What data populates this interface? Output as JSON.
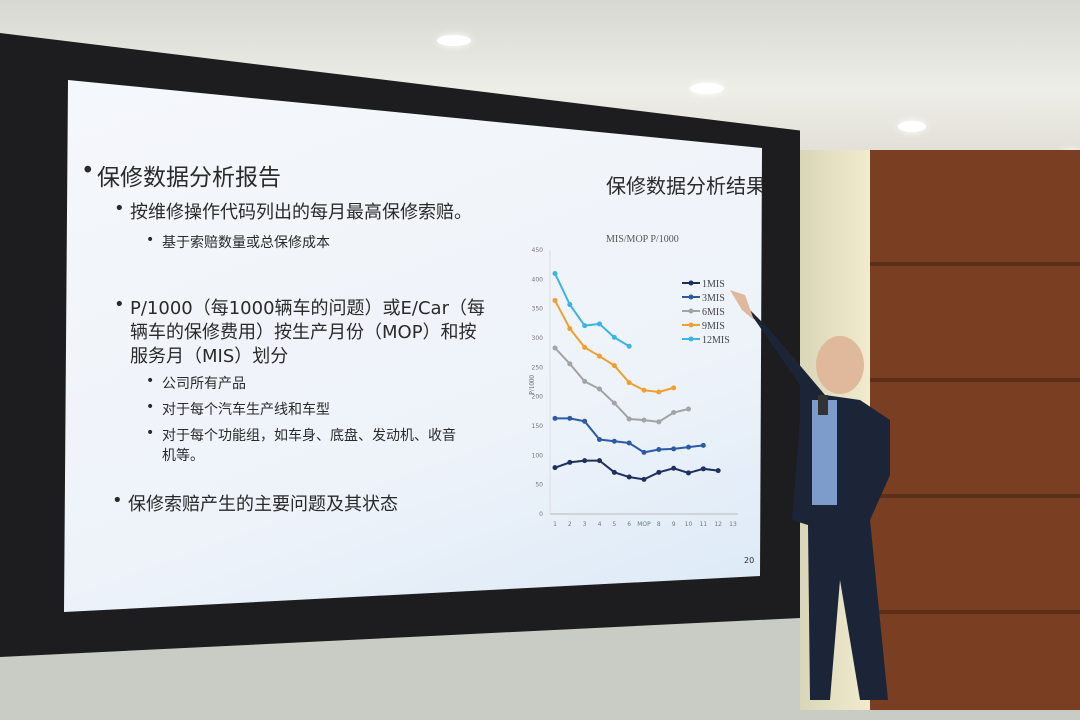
{
  "slide": {
    "left_heading": "保修数据分析报告",
    "bullets": [
      "按维修操作代码列出的每月最高保修索赔。",
      "基于索赔数量或总保修成本",
      "P/1000（每1000辆车的问题）或E/Car（每",
      "辆车的保修费用）按生产月份（MOP）和按",
      "服务月（MIS）划分",
      "公司所有产品",
      "对于每个汽车生产线和车型",
      "对于每个功能组，如车身、底盘、发动机、收音",
      "机等。",
      "保修索赔产生的主要问题及其状态"
    ],
    "right_heading": "保修数据分析结果",
    "page_number": "20"
  },
  "chart_data": {
    "type": "line",
    "title": "MIS/MOP P/1000",
    "ylabel": "P/1000",
    "xlabel": "MOP",
    "x_tick_labels": [
      "1",
      "2",
      "3",
      "4",
      "5",
      "6",
      "MOP",
      "8",
      "9",
      "10",
      "11",
      "12",
      "13"
    ],
    "y_tick_labels": [
      "0",
      "50",
      "100",
      "150",
      "200",
      "250",
      "300",
      "350",
      "400",
      "450"
    ],
    "xlim": [
      1,
      13
    ],
    "ylim": [
      0,
      450
    ],
    "grid": false,
    "legend_position": "top-right",
    "series": [
      {
        "name": "1MIS",
        "color": "#1f2f5e",
        "x": [
          1,
          2,
          3,
          4,
          5,
          6,
          7,
          8,
          9,
          10,
          11,
          12
        ],
        "values": [
          79,
          88,
          91,
          91,
          71,
          63,
          59,
          71,
          78,
          70,
          77,
          74
        ]
      },
      {
        "name": "3MIS",
        "color": "#2d5aa6",
        "x": [
          1,
          2,
          3,
          4,
          5,
          6,
          7,
          8,
          9,
          10,
          11
        ],
        "values": [
          163,
          163,
          158,
          127,
          124,
          121,
          105,
          110,
          111,
          114,
          117
        ]
      },
      {
        "name": "6MIS",
        "color": "#a3a3a3",
        "x": [
          1,
          2,
          3,
          4,
          5,
          6,
          7,
          8,
          9,
          10
        ],
        "values": [
          283,
          256,
          226,
          213,
          189,
          162,
          160,
          157,
          173,
          179
        ]
      },
      {
        "name": "9MIS",
        "color": "#f0a030",
        "x": [
          1,
          2,
          3,
          4,
          5,
          6,
          7,
          8,
          9
        ],
        "values": [
          364,
          316,
          284,
          269,
          253,
          224,
          211,
          208,
          215
        ]
      },
      {
        "name": "12MIS",
        "color": "#3cb4e6",
        "x": [
          1,
          2,
          3,
          4,
          5,
          6
        ],
        "values": [
          410,
          357,
          321,
          324,
          301,
          286
        ]
      }
    ]
  }
}
